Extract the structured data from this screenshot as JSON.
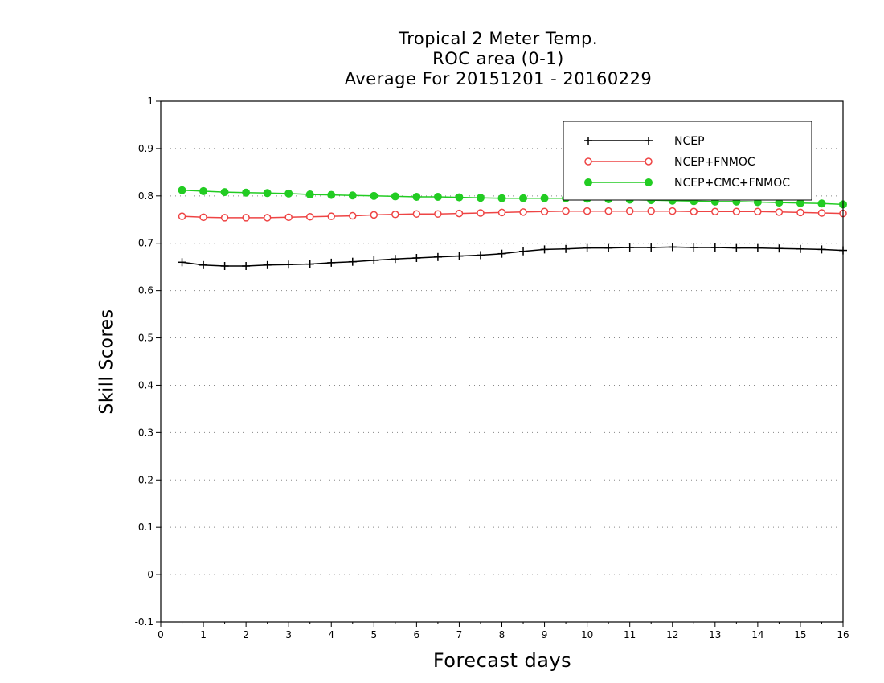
{
  "chart_data": {
    "type": "line",
    "title": [
      "Tropical 2 Meter Temp.",
      "ROC area (0-1)",
      "Average For 20151201 - 20160229"
    ],
    "xlabel": "Forecast days",
    "ylabel": "Skill Scores",
    "xlim": [
      0,
      16
    ],
    "ylim": [
      -0.1,
      1
    ],
    "xticks": [
      "0",
      "1",
      "2",
      "3",
      "4",
      "5",
      "6",
      "7",
      "8",
      "9",
      "10",
      "11",
      "12",
      "13",
      "14",
      "15",
      "16"
    ],
    "yticks": [
      "-0.1",
      "0",
      "0.1",
      "0.2",
      "0.3",
      "0.4",
      "0.5",
      "0.6",
      "0.7",
      "0.8",
      "0.9",
      "1"
    ],
    "grid": "horizontal dotted",
    "legend_position": "top-right",
    "x": [
      0.5,
      1,
      1.5,
      2,
      2.5,
      3,
      3.5,
      4,
      4.5,
      5,
      5.5,
      6,
      6.5,
      7,
      7.5,
      8,
      8.5,
      9,
      9.5,
      10,
      10.5,
      11,
      11.5,
      12,
      12.5,
      13,
      13.5,
      14,
      14.5,
      15,
      15.5,
      16
    ],
    "series": [
      {
        "name": "NCEP",
        "color": "#000000",
        "marker": "plus",
        "values": [
          0.66,
          0.654,
          0.652,
          0.652,
          0.654,
          0.655,
          0.656,
          0.659,
          0.661,
          0.664,
          0.667,
          0.669,
          0.671,
          0.673,
          0.675,
          0.678,
          0.683,
          0.687,
          0.688,
          0.69,
          0.69,
          0.691,
          0.691,
          0.692,
          0.691,
          0.691,
          0.69,
          0.69,
          0.689,
          0.688,
          0.687,
          0.685
        ]
      },
      {
        "name": "NCEP+FNMOC",
        "color": "#ee4444",
        "marker": "open-circle",
        "values": [
          0.757,
          0.755,
          0.754,
          0.754,
          0.754,
          0.755,
          0.756,
          0.757,
          0.758,
          0.76,
          0.761,
          0.762,
          0.762,
          0.763,
          0.764,
          0.765,
          0.766,
          0.767,
          0.768,
          0.768,
          0.768,
          0.768,
          0.768,
          0.768,
          0.767,
          0.767,
          0.767,
          0.767,
          0.766,
          0.765,
          0.764,
          0.763
        ]
      },
      {
        "name": "NCEP+CMC+FNMOC",
        "color": "#22cc22",
        "marker": "filled-circle",
        "values": [
          0.812,
          0.81,
          0.808,
          0.807,
          0.806,
          0.805,
          0.803,
          0.802,
          0.801,
          0.8,
          0.799,
          0.798,
          0.798,
          0.797,
          0.796,
          0.795,
          0.795,
          0.795,
          0.795,
          0.794,
          0.793,
          0.792,
          0.791,
          0.79,
          0.789,
          0.788,
          0.788,
          0.787,
          0.786,
          0.785,
          0.784,
          0.782
        ]
      }
    ]
  }
}
